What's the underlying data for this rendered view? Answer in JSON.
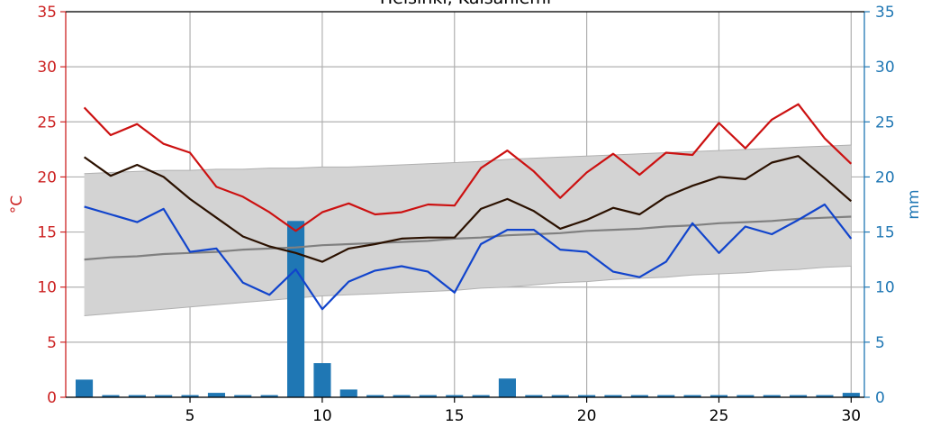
{
  "chart_data": {
    "type": "line",
    "title": "Helsinki, Kaisaniemi",
    "ylabel_left": "°C",
    "ylabel_right": "mm",
    "xlim": [
      0.3,
      30.5
    ],
    "ylim_left": [
      0,
      35
    ],
    "ylim_right": [
      0,
      35
    ],
    "x_ticks": [
      5,
      10,
      15,
      20,
      25,
      30
    ],
    "y_ticks": [
      0,
      5,
      10,
      15,
      20,
      25,
      30,
      35
    ],
    "grid": true,
    "colors": {
      "max": "#cc1111",
      "mean": "#2b1100",
      "min": "#1144cc",
      "avg_mean": "#808080",
      "band": "#d3d3d3",
      "band_edge": "#b0b0b0",
      "precip": "#1f77b4",
      "left_axis": "#cc2222",
      "right_axis": "#1f77b4",
      "grid": "#b0b0b0"
    },
    "days": [
      1,
      2,
      3,
      4,
      5,
      6,
      7,
      8,
      9,
      10,
      11,
      12,
      13,
      14,
      15,
      16,
      17,
      18,
      19,
      20,
      21,
      22,
      23,
      24,
      25,
      26,
      27,
      28,
      29,
      30
    ],
    "series": [
      {
        "values": [
          26.3,
          23.8,
          24.8,
          23.0,
          22.2,
          19.1,
          18.2,
          16.8,
          15.1,
          16.8,
          17.6,
          16.6,
          16.8,
          17.5,
          17.4,
          20.8,
          22.4,
          20.5,
          18.1,
          20.4,
          22.1,
          20.2,
          22.2,
          22.0,
          24.9,
          22.6,
          25.2,
          26.6,
          23.5,
          21.2
        ]
      },
      {
        "values": [
          21.8,
          20.1,
          21.1,
          20.0,
          18.0,
          16.3,
          14.6,
          13.7,
          13.1,
          12.3,
          13.5,
          13.9,
          14.4,
          14.5,
          14.5,
          17.1,
          18.0,
          16.9,
          15.3,
          16.1,
          17.2,
          16.6,
          18.2,
          19.2,
          20.0,
          19.8,
          21.3,
          21.9,
          19.9,
          17.8
        ]
      },
      {
        "values": [
          17.3,
          16.6,
          15.9,
          17.1,
          13.2,
          13.5,
          10.4,
          9.3,
          11.6,
          8.0,
          10.5,
          11.5,
          11.9,
          11.4,
          9.5,
          13.9,
          15.2,
          15.2,
          13.4,
          13.2,
          11.4,
          10.9,
          12.3,
          15.8,
          13.1,
          15.5,
          14.8,
          16.1,
          17.5,
          14.4
        ]
      },
      {
        "values": [
          12.5,
          12.7,
          12.8,
          13.0,
          13.1,
          13.2,
          13.4,
          13.5,
          13.6,
          13.8,
          13.9,
          14.0,
          14.1,
          14.2,
          14.4,
          14.5,
          14.7,
          14.8,
          14.9,
          15.1,
          15.2,
          15.3,
          15.5,
          15.6,
          15.8,
          15.9,
          16.0,
          16.2,
          16.3,
          16.4
        ]
      }
    ],
    "band_upper": [
      20.3,
      20.4,
      20.5,
      20.6,
      20.6,
      20.7,
      20.7,
      20.8,
      20.8,
      20.9,
      20.9,
      21.0,
      21.1,
      21.2,
      21.3,
      21.4,
      21.6,
      21.7,
      21.8,
      21.9,
      22.0,
      22.1,
      22.2,
      22.3,
      22.4,
      22.5,
      22.6,
      22.7,
      22.8,
      22.9
    ],
    "band_lower": [
      7.4,
      7.6,
      7.8,
      8.0,
      8.2,
      8.4,
      8.6,
      8.8,
      9.0,
      9.2,
      9.3,
      9.4,
      9.5,
      9.6,
      9.7,
      9.9,
      10.0,
      10.2,
      10.4,
      10.5,
      10.7,
      10.8,
      10.9,
      11.1,
      11.2,
      11.3,
      11.5,
      11.6,
      11.8,
      11.9
    ],
    "precipitation": [
      1.6,
      0.2,
      0.2,
      0.2,
      0.2,
      0.4,
      0.2,
      0.2,
      16.0,
      3.1,
      0.7,
      0.2,
      0.2,
      0.2,
      0.2,
      0.2,
      1.7,
      0.2,
      0.2,
      0.2,
      0.2,
      0.2,
      0.2,
      0.2,
      0.2,
      0.2,
      0.2,
      0.2,
      0.2,
      0.4
    ]
  }
}
